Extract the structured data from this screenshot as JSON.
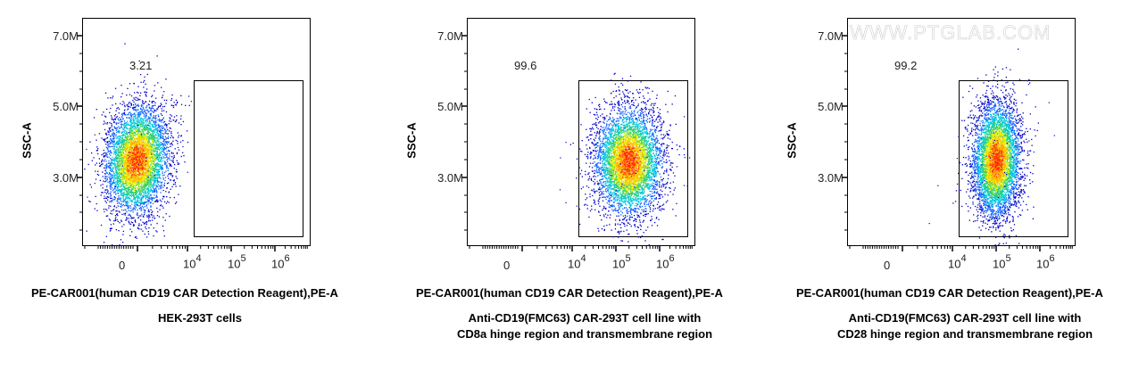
{
  "chart_data": [
    {
      "type": "scatter",
      "subtype": "flow-cytometry-density-dot-plot",
      "title": "HEK-293T cells",
      "xlabel": "PE-CAR001(human CD19 CAR Detection Reagent),PE-A",
      "ylabel": "SSC-A",
      "x_ticks": [
        "0",
        "10^4",
        "10^5",
        "10^6"
      ],
      "y_ticks": [
        "3.0M",
        "5.0M",
        "7.0M"
      ],
      "x_scale": "biexponential",
      "gate": {
        "type": "rectangle",
        "x_from": "~1.3e4",
        "x_to": "~4e6",
        "y_from": "~1.3M",
        "y_to": "~5.7M",
        "percent": 3.21
      },
      "population": {
        "x_center": "~4e3",
        "y_center": "~3.3M",
        "y_range": [
          "~1.8M",
          "~5.1M"
        ]
      }
    },
    {
      "type": "scatter",
      "subtype": "flow-cytometry-density-dot-plot",
      "title": "Anti-CD19(FMC63) CAR-293T cell line with CD8a hinge region and transmembrane region",
      "xlabel": "PE-CAR001(human CD19 CAR Detection Reagent),PE-A",
      "ylabel": "SSC-A",
      "x_ticks": [
        "0",
        "10^4",
        "10^5",
        "10^6"
      ],
      "y_ticks": [
        "3.0M",
        "5.0M",
        "7.0M"
      ],
      "x_scale": "biexponential",
      "gate": {
        "type": "rectangle",
        "x_from": "~1.3e4",
        "x_to": "~4e6",
        "y_from": "~1.3M",
        "y_to": "~5.7M",
        "percent": 99.6
      },
      "population": {
        "x_center": "~1.3e5",
        "y_center": "~3.0M",
        "y_range": [
          "~1.9M",
          "~5.1M"
        ]
      }
    },
    {
      "type": "scatter",
      "subtype": "flow-cytometry-density-dot-plot",
      "title": "Anti-CD19(FMC63) CAR-293T cell line with CD28 hinge region and transmembrane region",
      "xlabel": "PE-CAR001(human CD19 CAR Detection Reagent),PE-A",
      "ylabel": "SSC-A",
      "x_ticks": [
        "0",
        "10^4",
        "10^5",
        "10^6"
      ],
      "y_ticks": [
        "3.0M",
        "5.0M",
        "7.0M"
      ],
      "x_scale": "biexponential",
      "gate": {
        "type": "rectangle",
        "x_from": "~1.3e4",
        "x_to": "~4e6",
        "y_from": "~1.3M",
        "y_to": "~5.7M",
        "percent": 99.2
      },
      "population": {
        "x_center": "~1e5",
        "y_center": "~3.2M",
        "y_range": [
          "~1.8M",
          "~5.2M"
        ]
      }
    }
  ],
  "panels": [
    {
      "ylabel": "SSC-A",
      "yticks": [
        "7.0M",
        "5.0M",
        "3.0M"
      ],
      "xticks": {
        "zero": "0",
        "e4_base": "10",
        "e4_exp": "4",
        "e5_base": "10",
        "e5_exp": "5",
        "e6_base": "10",
        "e6_exp": "6"
      },
      "gate_percent": "3.21",
      "xlabel": "PE-CAR001(human CD19 CAR Detection Reagent),PE-A",
      "caption_line1": "HEK-293T cells",
      "caption_line2": ""
    },
    {
      "ylabel": "SSC-A",
      "yticks": [
        "7.0M",
        "5.0M",
        "3.0M"
      ],
      "xticks": {
        "zero": "0",
        "e4_base": "10",
        "e4_exp": "4",
        "e5_base": "10",
        "e5_exp": "5",
        "e6_base": "10",
        "e6_exp": "6"
      },
      "gate_percent": "99.6",
      "xlabel": "PE-CAR001(human CD19 CAR Detection Reagent),PE-A",
      "caption_line1": "Anti-CD19(FMC63) CAR-293T cell line with",
      "caption_line2": "CD8a hinge region and transmembrane region"
    },
    {
      "ylabel": "SSC-A",
      "yticks": [
        "7.0M",
        "5.0M",
        "3.0M"
      ],
      "xticks": {
        "zero": "0",
        "e4_base": "10",
        "e4_exp": "4",
        "e5_base": "10",
        "e5_exp": "5",
        "e6_base": "10",
        "e6_exp": "6"
      },
      "gate_percent": "99.2",
      "xlabel": "PE-CAR001(human CD19 CAR Detection Reagent),PE-A",
      "caption_line1": "Anti-CD19(FMC63) CAR-293T cell line with",
      "caption_line2": "CD28 hinge region and transmembrane region"
    }
  ],
  "watermark": "WWW.PTGLAB.COM",
  "colors": {
    "density_low": "#0000cc",
    "density_mid": "#00cc88",
    "density_high": "#ffee00",
    "density_peak": "#ff2200"
  }
}
